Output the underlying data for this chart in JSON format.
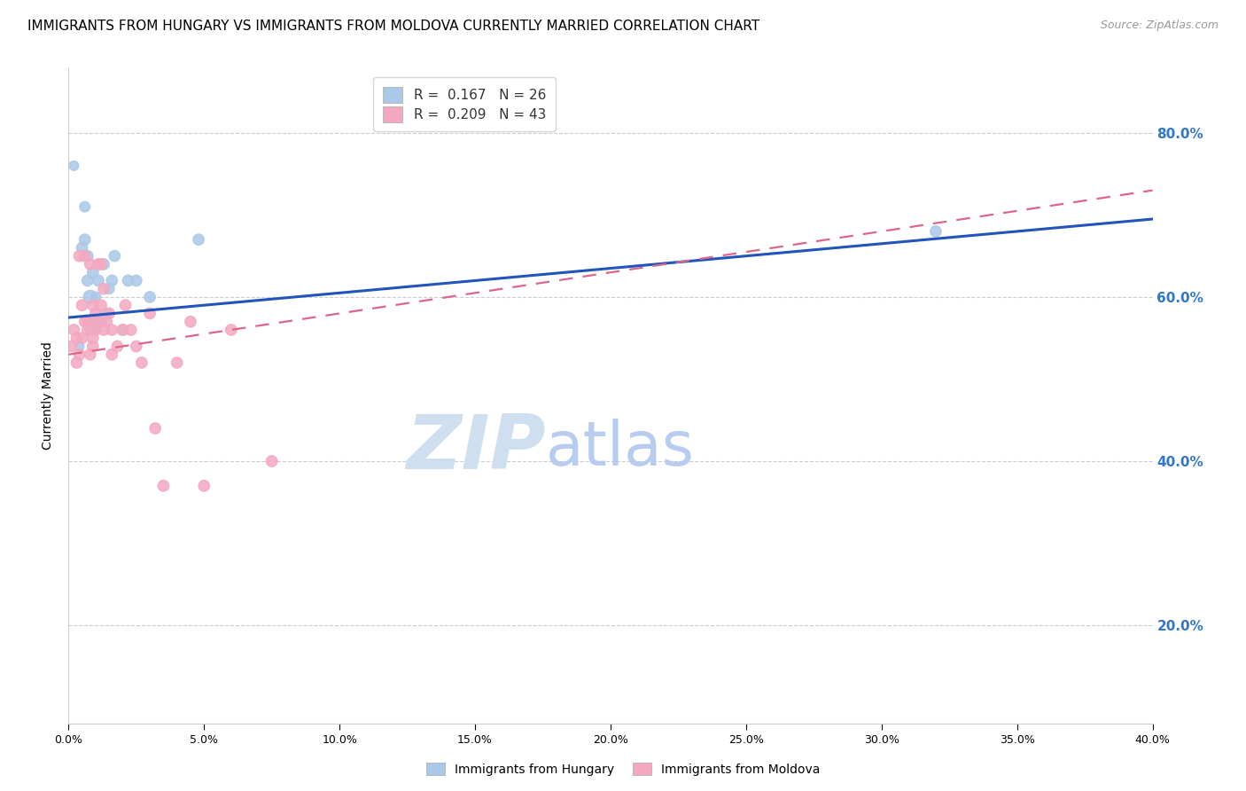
{
  "title": "IMMIGRANTS FROM HUNGARY VS IMMIGRANTS FROM MOLDOVA CURRENTLY MARRIED CORRELATION CHART",
  "source": "Source: ZipAtlas.com",
  "ylabel": "Currently Married",
  "xlim": [
    0.0,
    0.4
  ],
  "ylim": [
    0.08,
    0.88
  ],
  "yticks": [
    0.2,
    0.4,
    0.6,
    0.8
  ],
  "xticks": [
    0.0,
    0.05,
    0.1,
    0.15,
    0.2,
    0.25,
    0.3,
    0.35,
    0.4
  ],
  "hungary_R": 0.167,
  "hungary_N": 26,
  "moldova_R": 0.209,
  "moldova_N": 43,
  "hungary_color": "#aac8e8",
  "moldova_color": "#f4a8c0",
  "hungary_line_color": "#2255bb",
  "moldova_line_color": "#dd6688",
  "right_axis_color": "#3377cc",
  "background_color": "#ffffff",
  "grid_color": "#cccccc",
  "hungary_scatter_x": [
    0.002,
    0.004,
    0.005,
    0.006,
    0.006,
    0.007,
    0.007,
    0.008,
    0.008,
    0.009,
    0.009,
    0.01,
    0.01,
    0.011,
    0.012,
    0.013,
    0.014,
    0.015,
    0.016,
    0.017,
    0.02,
    0.022,
    0.025,
    0.03,
    0.048,
    0.32
  ],
  "hungary_scatter_y": [
    0.76,
    0.54,
    0.66,
    0.67,
    0.71,
    0.65,
    0.62,
    0.6,
    0.56,
    0.63,
    0.57,
    0.6,
    0.56,
    0.62,
    0.57,
    0.64,
    0.58,
    0.61,
    0.62,
    0.65,
    0.56,
    0.62,
    0.62,
    0.6,
    0.67,
    0.68
  ],
  "hungary_scatter_size": [
    60,
    60,
    80,
    80,
    70,
    80,
    80,
    120,
    80,
    80,
    80,
    70,
    70,
    80,
    80,
    80,
    80,
    70,
    80,
    80,
    80,
    80,
    80,
    80,
    80,
    80
  ],
  "moldova_scatter_x": [
    0.001,
    0.002,
    0.003,
    0.003,
    0.004,
    0.004,
    0.005,
    0.005,
    0.006,
    0.006,
    0.007,
    0.007,
    0.008,
    0.008,
    0.009,
    0.009,
    0.009,
    0.01,
    0.01,
    0.011,
    0.011,
    0.012,
    0.012,
    0.013,
    0.013,
    0.014,
    0.015,
    0.016,
    0.016,
    0.018,
    0.02,
    0.021,
    0.023,
    0.025,
    0.027,
    0.03,
    0.032,
    0.035,
    0.04,
    0.045,
    0.05,
    0.06,
    0.075
  ],
  "moldova_scatter_y": [
    0.54,
    0.56,
    0.52,
    0.55,
    0.65,
    0.53,
    0.59,
    0.55,
    0.65,
    0.57,
    0.57,
    0.56,
    0.64,
    0.53,
    0.59,
    0.55,
    0.54,
    0.58,
    0.56,
    0.64,
    0.57,
    0.64,
    0.59,
    0.56,
    0.61,
    0.57,
    0.58,
    0.56,
    0.53,
    0.54,
    0.56,
    0.59,
    0.56,
    0.54,
    0.52,
    0.58,
    0.44,
    0.37,
    0.52,
    0.57,
    0.37,
    0.56,
    0.4
  ],
  "moldova_scatter_size": [
    80,
    80,
    80,
    80,
    80,
    80,
    80,
    80,
    80,
    80,
    80,
    80,
    80,
    80,
    80,
    80,
    80,
    80,
    80,
    80,
    80,
    80,
    80,
    80,
    80,
    80,
    80,
    80,
    80,
    80,
    80,
    80,
    80,
    80,
    80,
    80,
    80,
    80,
    80,
    80,
    80,
    80,
    80
  ],
  "hungary_line_x": [
    0.0,
    0.4
  ],
  "hungary_line_y": [
    0.575,
    0.695
  ],
  "moldova_line_x": [
    0.0,
    0.4
  ],
  "moldova_line_y": [
    0.53,
    0.73
  ],
  "watermark_zip": "ZIP",
  "watermark_atlas": "atlas",
  "watermark_color_zip": "#d0dff0",
  "watermark_color_atlas": "#b8ccf0",
  "legend_box_color": "#ffffff",
  "legend_box_edge": "#cccccc",
  "title_fontsize": 11,
  "source_fontsize": 9,
  "axis_label_fontsize": 10,
  "tick_fontsize": 9,
  "legend_fontsize": 11
}
